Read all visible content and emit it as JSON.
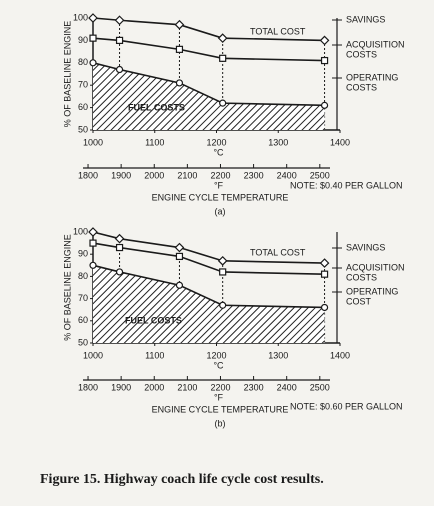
{
  "chart_data": [
    {
      "type": "line",
      "y_label": "% OF BASELINE ENGINE",
      "x_label": "°C",
      "x2_label": "°F",
      "x_title": "ENGINE CYCLE TEMPERATURE",
      "panel": "(a)",
      "note": "NOTE: $0.40 PER GALLON",
      "total_label": "TOTAL COST",
      "area_label": "FUEL COSTS",
      "side_labels": [
        [
          "SAVINGS"
        ],
        [
          "ACQUISITION",
          "COSTS"
        ],
        [
          "OPERATING",
          "COSTS"
        ]
      ],
      "x": [
        1000,
        1043,
        1140,
        1210,
        1375
      ],
      "series": [
        {
          "color": "#1a1a1a",
          "marker": "diamond",
          "values": [
            100,
            99,
            97,
            91,
            90
          ]
        },
        {
          "color": "#1a1a1a",
          "marker": "square",
          "values": [
            91,
            90,
            86,
            82,
            81
          ]
        },
        {
          "color": "#1a1a1a",
          "marker": "circle",
          "area": true,
          "values": [
            80,
            77,
            71,
            62,
            61
          ]
        }
      ],
      "xlim": [
        1000,
        1400
      ],
      "xticks": [
        1000,
        1100,
        1200,
        1300,
        1400
      ],
      "x2lim": [
        1815,
        2561
      ],
      "x2ticks": [
        1800,
        1900,
        2000,
        2100,
        2200,
        2300,
        2400,
        2500
      ],
      "ylim": [
        50,
        100
      ],
      "yticks": [
        50,
        60,
        70,
        80,
        90,
        100
      ]
    },
    {
      "type": "line",
      "y_label": "% OF BASELINE ENGINE",
      "x_label": "°C",
      "x2_label": "°F",
      "x_title": "ENGINE CYCLE TEMPERATURE",
      "panel": "(b)",
      "note": "NOTE: $0.60 PER GALLON",
      "total_label": "TOTAL COST",
      "area_label": "FUEL COSTS",
      "side_labels": [
        [
          "SAVINGS"
        ],
        [
          "ACQUISITION",
          "COSTS"
        ],
        [
          "OPERATING",
          "COST"
        ]
      ],
      "x": [
        1000,
        1043,
        1140,
        1210,
        1375
      ],
      "series": [
        {
          "color": "#1a1a1a",
          "marker": "diamond",
          "values": [
            100,
            97,
            93,
            87,
            86
          ]
        },
        {
          "color": "#1a1a1a",
          "marker": "square",
          "values": [
            95,
            93,
            89,
            82,
            81
          ]
        },
        {
          "color": "#1a1a1a",
          "marker": "circle",
          "area": true,
          "values": [
            85,
            82,
            76,
            67,
            66
          ]
        }
      ],
      "xlim": [
        1000,
        1400
      ],
      "xticks": [
        1000,
        1100,
        1200,
        1300,
        1400
      ],
      "x2lim": [
        1815,
        2561
      ],
      "x2ticks": [
        1800,
        1900,
        2000,
        2100,
        2200,
        2300,
        2400,
        2500
      ],
      "ylim": [
        50,
        100
      ],
      "yticks": [
        50,
        60,
        70,
        80,
        90,
        100
      ]
    }
  ],
  "caption": "Figure 15.  Highway coach life cycle cost results."
}
